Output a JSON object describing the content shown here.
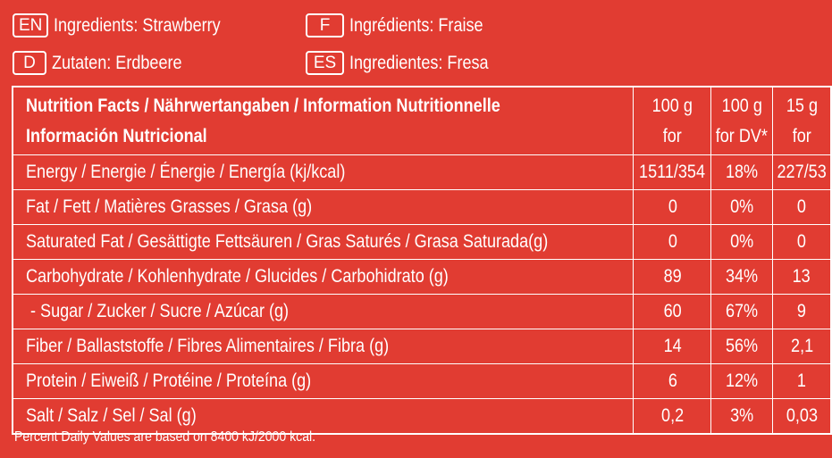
{
  "ingredients": [
    {
      "code": "EN",
      "text": "Ingredients: Strawberry"
    },
    {
      "code": "F",
      "text": "Ingrédients: Fraise"
    },
    {
      "code": "D",
      "text": "Zutaten: Erdbeere"
    },
    {
      "code": "ES",
      "text": "Ingredientes: Fresa"
    }
  ],
  "table": {
    "header": {
      "title_line1": "Nutrition Facts / Nährwertangaben / Information Nutritionnelle",
      "title_line2": "Información Nutricional",
      "col1": [
        "100 g",
        "for"
      ],
      "col2": [
        "100 g",
        "for DV*"
      ],
      "col3": [
        "15 g",
        "for"
      ]
    },
    "rows": [
      {
        "label": "Energy / Energie / Énergie / Energía (kj/kcal)",
        "v100": "1511/354",
        "dv": "18%",
        "v15": "227/53"
      },
      {
        "label": "Fat / Fett / Matières Grasses / Grasa (g)",
        "v100": "0",
        "dv": "0%",
        "v15": "0"
      },
      {
        "label": "Saturated Fat / Gesättigte Fettsäuren / Gras Saturés / Grasa Saturada(g)",
        "v100": "0",
        "dv": "0%",
        "v15": "0"
      },
      {
        "label": "Carbohydrate / Kohlenhydrate / Glucides / Carbohidrato (g)",
        "v100": "89",
        "dv": "34%",
        "v15": "13"
      },
      {
        "label": " - Sugar / Zucker / Sucre / Azúcar (g)",
        "v100": "60",
        "dv": "67%",
        "v15": "9"
      },
      {
        "label": "Fiber / Ballaststoffe / Fibres Alimentaires / Fibra (g)",
        "v100": "14",
        "dv": "56%",
        "v15": "2,1"
      },
      {
        "label": "Protein / Eiweiß / Protéine / Proteína (g)",
        "v100": "6",
        "dv": "12%",
        "v15": "1"
      },
      {
        "label": "Salt / Salz / Sel / Sal (g)",
        "v100": "0,2",
        "dv": "3%",
        "v15": "0,03"
      }
    ]
  },
  "footnote": "Percent Daily Values are based on 8400 kJ/2000 kcal.",
  "colors": {
    "background": "#e13c32",
    "text": "#ffffff"
  }
}
